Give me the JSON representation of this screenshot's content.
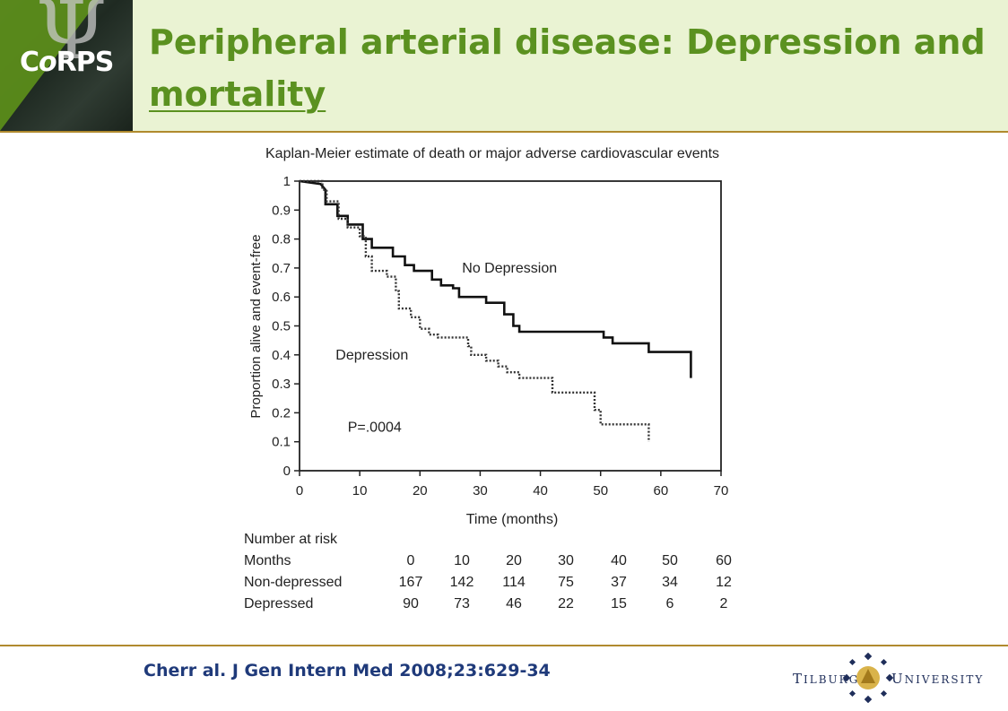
{
  "header": {
    "logo_text_a": "C",
    "logo_text_b": "o",
    "logo_text_c": "RPS",
    "logo_glyph": "Ψ",
    "title_line1": "Peripheral arterial disease: Depression and",
    "title_line2": "mortality"
  },
  "chart_data": {
    "type": "line",
    "title": "Kaplan-Meier estimate of death or major adverse cardiovascular events",
    "xlabel": "Time (months)",
    "ylabel": "Proportion alive and event-free",
    "xlim": [
      0,
      70
    ],
    "ylim": [
      0,
      1
    ],
    "xticks": [
      "0",
      "10",
      "20",
      "30",
      "40",
      "50",
      "60",
      "70"
    ],
    "yticks": [
      "0",
      "0.1",
      "0.2",
      "0.3",
      "0.4",
      "0.5",
      "0.6",
      "0.7",
      "0.8",
      "0.9",
      "1"
    ],
    "annotation": "P=.0004",
    "series": [
      {
        "name": "No Depression",
        "style": "solid",
        "points": [
          [
            0,
            1.0
          ],
          [
            3.5,
            0.99
          ],
          [
            4.3,
            0.97
          ],
          [
            4.3,
            0.92
          ],
          [
            6.3,
            0.92
          ],
          [
            6.3,
            0.88
          ],
          [
            8,
            0.88
          ],
          [
            8,
            0.85
          ],
          [
            10.5,
            0.85
          ],
          [
            10.5,
            0.8
          ],
          [
            12,
            0.8
          ],
          [
            12,
            0.77
          ],
          [
            15.5,
            0.77
          ],
          [
            15.5,
            0.74
          ],
          [
            17.5,
            0.74
          ],
          [
            17.5,
            0.71
          ],
          [
            19,
            0.71
          ],
          [
            19,
            0.69
          ],
          [
            22,
            0.69
          ],
          [
            22,
            0.66
          ],
          [
            23.5,
            0.66
          ],
          [
            23.5,
            0.64
          ],
          [
            25.5,
            0.64
          ],
          [
            25.5,
            0.63
          ],
          [
            26.5,
            0.63
          ],
          [
            26.5,
            0.6
          ],
          [
            31,
            0.6
          ],
          [
            31,
            0.58
          ],
          [
            34,
            0.58
          ],
          [
            34,
            0.54
          ],
          [
            35.5,
            0.54
          ],
          [
            35.5,
            0.5
          ],
          [
            36.5,
            0.5
          ],
          [
            36.5,
            0.48
          ],
          [
            50.5,
            0.48
          ],
          [
            50.5,
            0.46
          ],
          [
            52,
            0.46
          ],
          [
            52,
            0.44
          ],
          [
            58,
            0.44
          ],
          [
            58,
            0.41
          ],
          [
            65,
            0.41
          ],
          [
            65,
            0.32
          ]
        ]
      },
      {
        "name": "Depression",
        "style": "dotted",
        "points": [
          [
            0,
            1.0
          ],
          [
            3.8,
            1.0
          ],
          [
            3.8,
            0.97
          ],
          [
            4.5,
            0.97
          ],
          [
            4.5,
            0.93
          ],
          [
            6.5,
            0.93
          ],
          [
            6.5,
            0.87
          ],
          [
            8,
            0.87
          ],
          [
            8,
            0.84
          ],
          [
            10,
            0.84
          ],
          [
            10,
            0.81
          ],
          [
            11,
            0.81
          ],
          [
            11,
            0.74
          ],
          [
            12,
            0.74
          ],
          [
            12,
            0.69
          ],
          [
            14.5,
            0.69
          ],
          [
            14.5,
            0.67
          ],
          [
            16,
            0.67
          ],
          [
            16,
            0.62
          ],
          [
            16.5,
            0.62
          ],
          [
            16.5,
            0.56
          ],
          [
            18.5,
            0.56
          ],
          [
            18.5,
            0.53
          ],
          [
            20,
            0.53
          ],
          [
            20,
            0.49
          ],
          [
            21.5,
            0.49
          ],
          [
            21.5,
            0.47
          ],
          [
            23,
            0.47
          ],
          [
            23,
            0.46
          ],
          [
            28,
            0.46
          ],
          [
            28,
            0.43
          ],
          [
            28.5,
            0.43
          ],
          [
            28.5,
            0.4
          ],
          [
            31,
            0.4
          ],
          [
            31,
            0.38
          ],
          [
            33,
            0.38
          ],
          [
            33,
            0.36
          ],
          [
            34.5,
            0.36
          ],
          [
            34.5,
            0.34
          ],
          [
            36.5,
            0.34
          ],
          [
            36.5,
            0.32
          ],
          [
            42,
            0.32
          ],
          [
            42,
            0.27
          ],
          [
            49,
            0.27
          ],
          [
            49,
            0.21
          ],
          [
            50,
            0.21
          ],
          [
            50,
            0.16
          ],
          [
            58,
            0.16
          ],
          [
            58,
            0.1
          ]
        ]
      }
    ],
    "risk_table": {
      "heading": "Number at risk",
      "rows": [
        {
          "label": "Months",
          "values": [
            "0",
            "10",
            "20",
            "30",
            "40",
            "50",
            "60"
          ]
        },
        {
          "label": "Non-depressed",
          "values": [
            "167",
            "142",
            "114",
            "75",
            "37",
            "34",
            "12"
          ]
        },
        {
          "label": "Depressed",
          "values": [
            "90",
            "73",
            "46",
            "22",
            "15",
            "6",
            "2"
          ]
        }
      ]
    }
  },
  "footer": {
    "citation": "Cherr al. J Gen Intern Med 2008;23:629-34",
    "university_word1_initial": "T",
    "university_word1_rest": "ILBURG",
    "university_word2_initial": "U",
    "university_word2_rest": "NIVERSITY"
  },
  "colors": {
    "title": "#5b9120",
    "header_bg": "#eaf3d3",
    "rule": "#b08a2e",
    "citation": "#1f3a7a"
  }
}
